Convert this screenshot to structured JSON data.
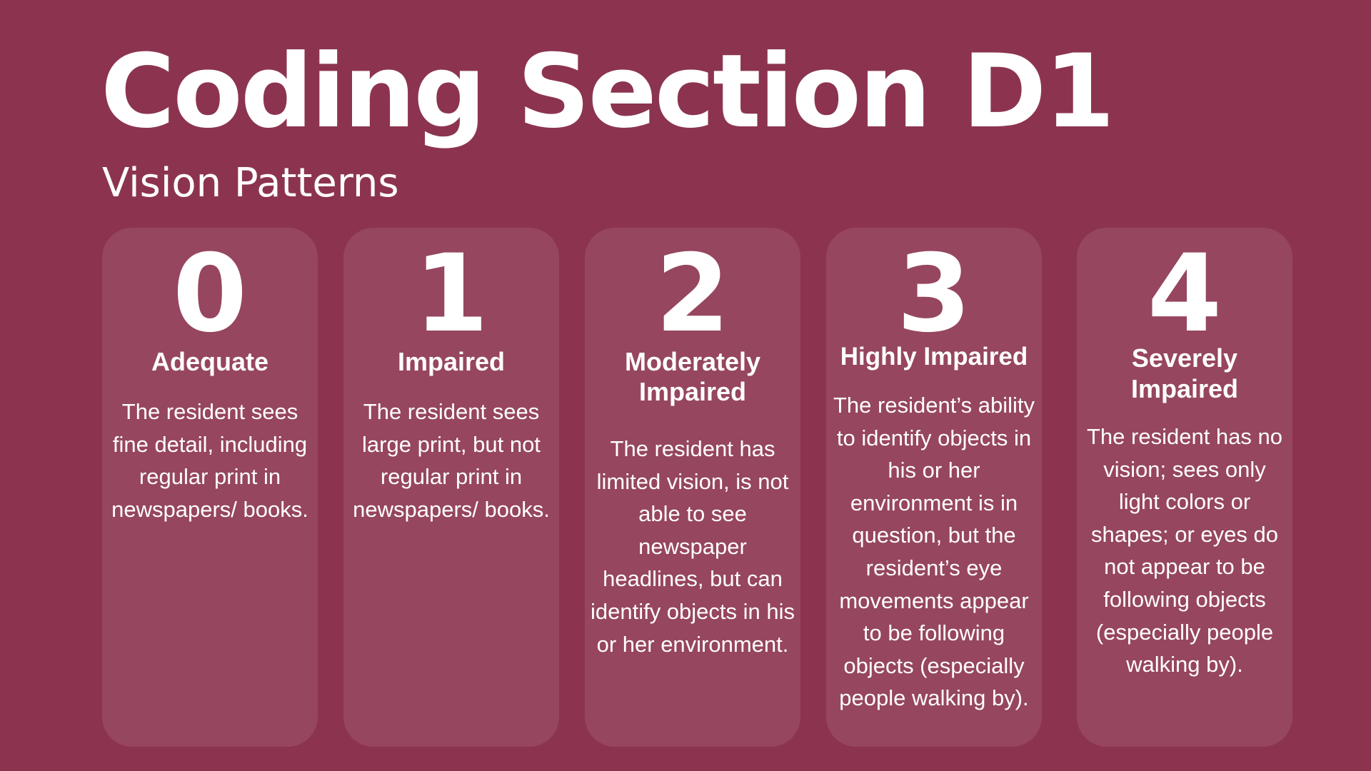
{
  "header": {
    "title": "Coding Section D1",
    "subtitle": "Vision Patterns"
  },
  "cards": [
    {
      "number": "0",
      "label": "Adequate",
      "description": "The resident sees fine detail, including regular print in newspapers/ books."
    },
    {
      "number": "1",
      "label": "Impaired",
      "description": "The resident sees large print, but not regular print in newspapers/ books."
    },
    {
      "number": "2",
      "label": "Moderately Impaired",
      "description": "The resident has limited vision, is not able to see newspaper headlines, but can identify objects in his or her environment."
    },
    {
      "number": "3",
      "label": "Highly Impaired",
      "description": "The resident’s ability to identify objects in his or her environment is in question, but the resident’s eye movements appear to be following objects (especially people walking by)."
    },
    {
      "number": "4",
      "label": "Severely Impaired",
      "description": "The resident has no vision; sees only light colors or shapes; or eyes do not appear to be following objects (especially people walking by)."
    }
  ]
}
